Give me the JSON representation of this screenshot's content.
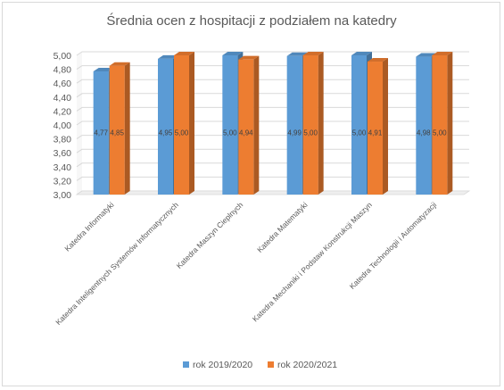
{
  "chart_data": {
    "type": "bar",
    "title": "Średnia ocen z hospitacji z podziałem na katedry",
    "xlabel": "",
    "ylabel": "",
    "ylim": [
      3.0,
      5.0
    ],
    "yticks": [
      "3,00",
      "3,20",
      "3,40",
      "3,60",
      "3,80",
      "4,00",
      "4,20",
      "4,40",
      "4,60",
      "4,80",
      "5,00"
    ],
    "categories": [
      "Katedra Informatyki",
      "Katedra Inteligentnych Systemów Informatycznych",
      "Katedra Maszyn Cieplnych",
      "Katedra Matematyki",
      "Katedra Mechaniki i Podstaw Konstrukcji Maszyn",
      "Katedra Technologii i Automatyzacji"
    ],
    "series": [
      {
        "name": "rok 2019/2020",
        "color": "#5b9bd5",
        "values": [
          4.77,
          4.95,
          5.0,
          4.99,
          5.0,
          4.98
        ],
        "labels": [
          "4,77",
          "4,95",
          "5,00",
          "4,99",
          "5,00",
          "4,98"
        ]
      },
      {
        "name": "rok 2020/2021",
        "color": "#ed7d31",
        "values": [
          4.85,
          5.0,
          4.94,
          5.0,
          4.91,
          5.0
        ],
        "labels": [
          "4,85",
          "5,00",
          "4,94",
          "5,00",
          "4,91",
          "5,00"
        ]
      }
    ],
    "grid": true,
    "legend_position": "bottom",
    "style": "3d-clustered-column"
  }
}
